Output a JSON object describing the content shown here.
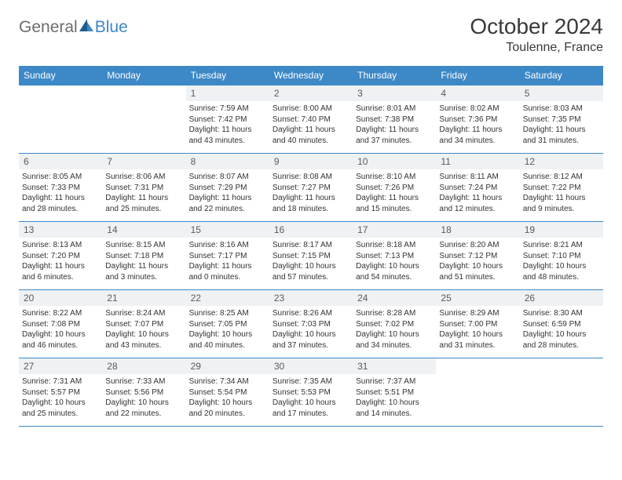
{
  "logo": {
    "general": "General",
    "blue": "Blue"
  },
  "title": "October 2024",
  "location": "Toulenne, France",
  "colors": {
    "accent": "#3d88c7",
    "dayNumBg": "#eef2f5",
    "text": "#333333",
    "logoGrey": "#6c6c6c"
  },
  "weekdays": [
    "Sunday",
    "Monday",
    "Tuesday",
    "Wednesday",
    "Thursday",
    "Friday",
    "Saturday"
  ],
  "weeks": [
    [
      {
        "empty": true
      },
      {
        "empty": true
      },
      {
        "num": "1",
        "sunrise": "Sunrise: 7:59 AM",
        "sunset": "Sunset: 7:42 PM",
        "daylight": "Daylight: 11 hours and 43 minutes."
      },
      {
        "num": "2",
        "sunrise": "Sunrise: 8:00 AM",
        "sunset": "Sunset: 7:40 PM",
        "daylight": "Daylight: 11 hours and 40 minutes."
      },
      {
        "num": "3",
        "sunrise": "Sunrise: 8:01 AM",
        "sunset": "Sunset: 7:38 PM",
        "daylight": "Daylight: 11 hours and 37 minutes."
      },
      {
        "num": "4",
        "sunrise": "Sunrise: 8:02 AM",
        "sunset": "Sunset: 7:36 PM",
        "daylight": "Daylight: 11 hours and 34 minutes."
      },
      {
        "num": "5",
        "sunrise": "Sunrise: 8:03 AM",
        "sunset": "Sunset: 7:35 PM",
        "daylight": "Daylight: 11 hours and 31 minutes."
      }
    ],
    [
      {
        "num": "6",
        "sunrise": "Sunrise: 8:05 AM",
        "sunset": "Sunset: 7:33 PM",
        "daylight": "Daylight: 11 hours and 28 minutes."
      },
      {
        "num": "7",
        "sunrise": "Sunrise: 8:06 AM",
        "sunset": "Sunset: 7:31 PM",
        "daylight": "Daylight: 11 hours and 25 minutes."
      },
      {
        "num": "8",
        "sunrise": "Sunrise: 8:07 AM",
        "sunset": "Sunset: 7:29 PM",
        "daylight": "Daylight: 11 hours and 22 minutes."
      },
      {
        "num": "9",
        "sunrise": "Sunrise: 8:08 AM",
        "sunset": "Sunset: 7:27 PM",
        "daylight": "Daylight: 11 hours and 18 minutes."
      },
      {
        "num": "10",
        "sunrise": "Sunrise: 8:10 AM",
        "sunset": "Sunset: 7:26 PM",
        "daylight": "Daylight: 11 hours and 15 minutes."
      },
      {
        "num": "11",
        "sunrise": "Sunrise: 8:11 AM",
        "sunset": "Sunset: 7:24 PM",
        "daylight": "Daylight: 11 hours and 12 minutes."
      },
      {
        "num": "12",
        "sunrise": "Sunrise: 8:12 AM",
        "sunset": "Sunset: 7:22 PM",
        "daylight": "Daylight: 11 hours and 9 minutes."
      }
    ],
    [
      {
        "num": "13",
        "sunrise": "Sunrise: 8:13 AM",
        "sunset": "Sunset: 7:20 PM",
        "daylight": "Daylight: 11 hours and 6 minutes."
      },
      {
        "num": "14",
        "sunrise": "Sunrise: 8:15 AM",
        "sunset": "Sunset: 7:18 PM",
        "daylight": "Daylight: 11 hours and 3 minutes."
      },
      {
        "num": "15",
        "sunrise": "Sunrise: 8:16 AM",
        "sunset": "Sunset: 7:17 PM",
        "daylight": "Daylight: 11 hours and 0 minutes."
      },
      {
        "num": "16",
        "sunrise": "Sunrise: 8:17 AM",
        "sunset": "Sunset: 7:15 PM",
        "daylight": "Daylight: 10 hours and 57 minutes."
      },
      {
        "num": "17",
        "sunrise": "Sunrise: 8:18 AM",
        "sunset": "Sunset: 7:13 PM",
        "daylight": "Daylight: 10 hours and 54 minutes."
      },
      {
        "num": "18",
        "sunrise": "Sunrise: 8:20 AM",
        "sunset": "Sunset: 7:12 PM",
        "daylight": "Daylight: 10 hours and 51 minutes."
      },
      {
        "num": "19",
        "sunrise": "Sunrise: 8:21 AM",
        "sunset": "Sunset: 7:10 PM",
        "daylight": "Daylight: 10 hours and 48 minutes."
      }
    ],
    [
      {
        "num": "20",
        "sunrise": "Sunrise: 8:22 AM",
        "sunset": "Sunset: 7:08 PM",
        "daylight": "Daylight: 10 hours and 46 minutes."
      },
      {
        "num": "21",
        "sunrise": "Sunrise: 8:24 AM",
        "sunset": "Sunset: 7:07 PM",
        "daylight": "Daylight: 10 hours and 43 minutes."
      },
      {
        "num": "22",
        "sunrise": "Sunrise: 8:25 AM",
        "sunset": "Sunset: 7:05 PM",
        "daylight": "Daylight: 10 hours and 40 minutes."
      },
      {
        "num": "23",
        "sunrise": "Sunrise: 8:26 AM",
        "sunset": "Sunset: 7:03 PM",
        "daylight": "Daylight: 10 hours and 37 minutes."
      },
      {
        "num": "24",
        "sunrise": "Sunrise: 8:28 AM",
        "sunset": "Sunset: 7:02 PM",
        "daylight": "Daylight: 10 hours and 34 minutes."
      },
      {
        "num": "25",
        "sunrise": "Sunrise: 8:29 AM",
        "sunset": "Sunset: 7:00 PM",
        "daylight": "Daylight: 10 hours and 31 minutes."
      },
      {
        "num": "26",
        "sunrise": "Sunrise: 8:30 AM",
        "sunset": "Sunset: 6:59 PM",
        "daylight": "Daylight: 10 hours and 28 minutes."
      }
    ],
    [
      {
        "num": "27",
        "sunrise": "Sunrise: 7:31 AM",
        "sunset": "Sunset: 5:57 PM",
        "daylight": "Daylight: 10 hours and 25 minutes."
      },
      {
        "num": "28",
        "sunrise": "Sunrise: 7:33 AM",
        "sunset": "Sunset: 5:56 PM",
        "daylight": "Daylight: 10 hours and 22 minutes."
      },
      {
        "num": "29",
        "sunrise": "Sunrise: 7:34 AM",
        "sunset": "Sunset: 5:54 PM",
        "daylight": "Daylight: 10 hours and 20 minutes."
      },
      {
        "num": "30",
        "sunrise": "Sunrise: 7:35 AM",
        "sunset": "Sunset: 5:53 PM",
        "daylight": "Daylight: 10 hours and 17 minutes."
      },
      {
        "num": "31",
        "sunrise": "Sunrise: 7:37 AM",
        "sunset": "Sunset: 5:51 PM",
        "daylight": "Daylight: 10 hours and 14 minutes."
      },
      {
        "empty": true
      },
      {
        "empty": true
      }
    ]
  ]
}
